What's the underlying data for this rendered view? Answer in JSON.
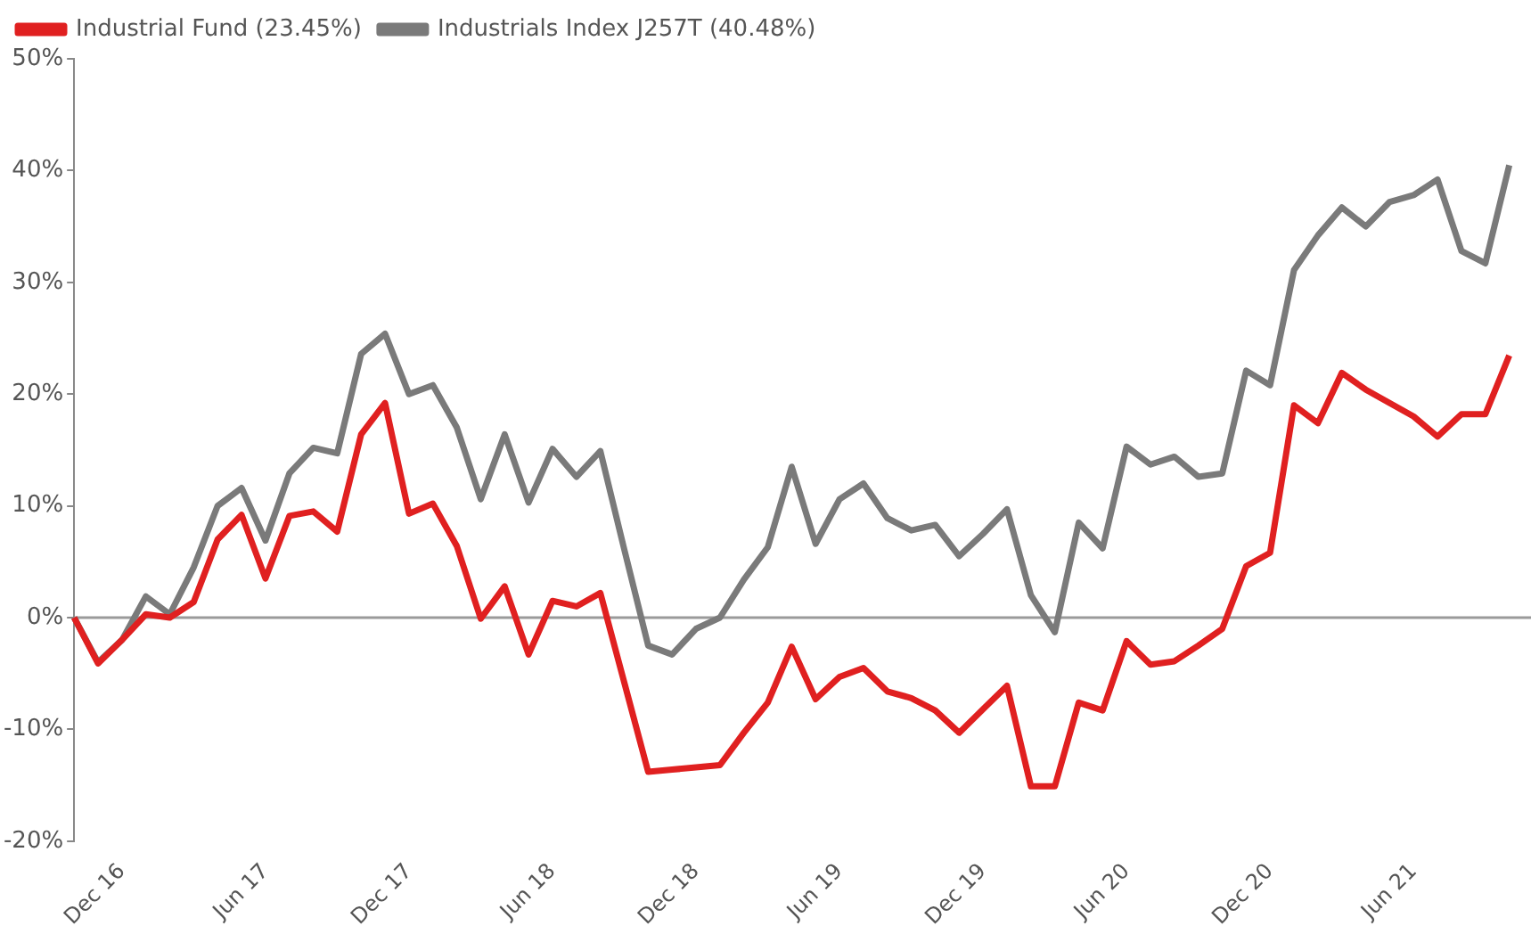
{
  "chart_data": {
    "type": "line",
    "categories": [
      null,
      null,
      "Dec 16",
      null,
      null,
      null,
      null,
      null,
      "Jun 17",
      null,
      null,
      null,
      null,
      null,
      "Dec 17",
      null,
      null,
      null,
      null,
      null,
      "Jun 18",
      null,
      null,
      null,
      null,
      null,
      "Dec 18",
      null,
      null,
      null,
      null,
      null,
      "Jun 19",
      null,
      null,
      null,
      null,
      null,
      "Dec 19",
      null,
      null,
      null,
      null,
      null,
      "Jun 20",
      null,
      null,
      null,
      null,
      null,
      "Dec 20",
      null,
      null,
      null,
      null,
      null,
      "Jun 21",
      null,
      null,
      null,
      null
    ],
    "series": [
      {
        "name": "Industrial Fund (23.45%)",
        "color": "#e02020",
        "values": [
          0,
          -4.1,
          -2.0,
          0.3,
          0,
          1.4,
          7.0,
          9.2,
          3.5,
          9.1,
          9.5,
          7.7,
          16.4,
          19.2,
          9.3,
          10.2,
          6.4,
          -0.1,
          2.8,
          -3.3,
          1.5,
          1.0,
          2.2,
          -5.8,
          -13.8,
          -13.6,
          -13.4,
          -13.2,
          -10.3,
          -7.6,
          -2.6,
          -7.3,
          -5.3,
          -4.5,
          -6.6,
          -7.2,
          -8.3,
          -10.3,
          -8.2,
          -6.1,
          -15.1,
          -15.1,
          -7.6,
          -8.3,
          -2.1,
          -4.2,
          -3.9,
          -2.5,
          -1.0,
          4.6,
          5.8,
          19.0,
          17.4,
          21.9,
          20.4,
          19.2,
          18.0,
          16.2,
          18.2,
          18.2,
          23.45
        ]
      },
      {
        "name": "Industrials Index J257T (40.48%)",
        "color": "#7a7a7a",
        "values": [
          0,
          -4.0,
          -2.0,
          1.9,
          0.3,
          4.5,
          10.0,
          11.6,
          6.9,
          12.9,
          15.2,
          14.7,
          23.6,
          25.4,
          20.0,
          20.8,
          17.0,
          10.6,
          16.4,
          10.3,
          15.1,
          12.6,
          14.9,
          6.1,
          -2.5,
          -3.3,
          -1.0,
          0,
          3.4,
          6.3,
          13.5,
          6.6,
          10.6,
          12.0,
          8.9,
          7.8,
          8.3,
          5.5,
          7.5,
          9.7,
          2.0,
          -1.3,
          8.5,
          6.2,
          15.3,
          13.7,
          14.4,
          12.6,
          12.9,
          22.1,
          20.8,
          31.1,
          34.2,
          36.7,
          35.0,
          37.2,
          37.8,
          39.2,
          32.8,
          31.7,
          40.48
        ]
      }
    ],
    "ylim": [
      -20,
      50
    ],
    "yticks": [
      {
        "value": -20,
        "label": "-20%"
      },
      {
        "value": -10,
        "label": "-10%"
      },
      {
        "value": 0,
        "label": "0%"
      },
      {
        "value": 10,
        "label": "10%"
      },
      {
        "value": 20,
        "label": "20%"
      },
      {
        "value": 30,
        "label": "30%"
      },
      {
        "value": 40,
        "label": "40%"
      },
      {
        "value": 50,
        "label": "50%"
      }
    ],
    "ref_lines": [
      {
        "axis": "y",
        "value": 0,
        "color": "#9a9a9a"
      }
    ],
    "grid": false,
    "legend": "top left",
    "marker": "none",
    "line_style": "solid"
  }
}
